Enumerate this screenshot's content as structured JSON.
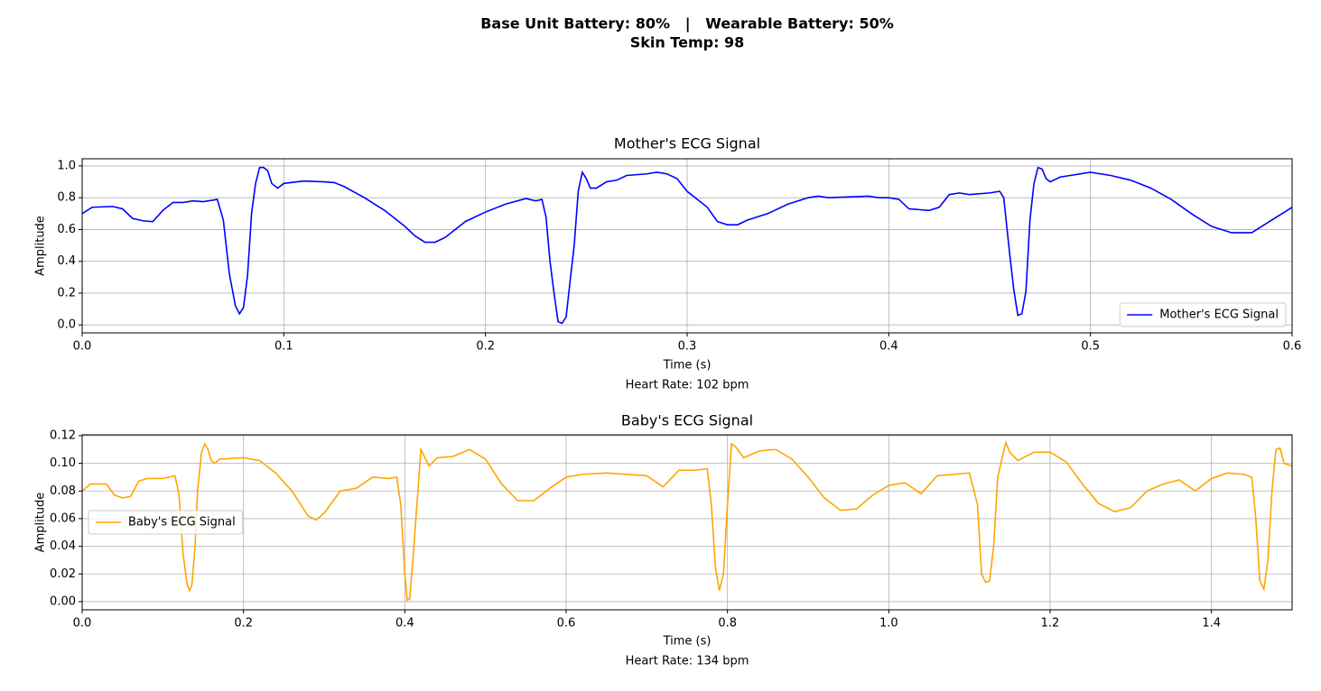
{
  "header": {
    "battery": "Base Unit Battery: 80%   |   Wearable Battery: 50%",
    "skin_temp": "Skin Temp: 98"
  },
  "chart_data": [
    {
      "type": "line",
      "title": "Mother's ECG Signal",
      "xlabel": "Time (s)",
      "ylabel": "Amplitude",
      "annotation": "Heart Rate: 102 bpm",
      "x": [
        0,
        0.005,
        0.015,
        0.02,
        0.025,
        0.03,
        0.035,
        0.04,
        0.045,
        0.05,
        0.055,
        0.06,
        0.065,
        0.067,
        0.07,
        0.073,
        0.076,
        0.078,
        0.08,
        0.082,
        0.084,
        0.086,
        0.088,
        0.09,
        0.092,
        0.094,
        0.097,
        0.1,
        0.11,
        0.12,
        0.125,
        0.13,
        0.14,
        0.15,
        0.16,
        0.165,
        0.17,
        0.175,
        0.18,
        0.19,
        0.2,
        0.21,
        0.22,
        0.225,
        0.228,
        0.23,
        0.232,
        0.234,
        0.236,
        0.238,
        0.24,
        0.242,
        0.244,
        0.246,
        0.248,
        0.25,
        0.252,
        0.255,
        0.26,
        0.265,
        0.27,
        0.28,
        0.285,
        0.29,
        0.295,
        0.3,
        0.31,
        0.315,
        0.32,
        0.325,
        0.33,
        0.34,
        0.35,
        0.36,
        0.365,
        0.37,
        0.38,
        0.39,
        0.395,
        0.4,
        0.405,
        0.41,
        0.42,
        0.425,
        0.43,
        0.435,
        0.44,
        0.45,
        0.455,
        0.457,
        0.46,
        0.462,
        0.464,
        0.466,
        0.468,
        0.47,
        0.472,
        0.474,
        0.476,
        0.478,
        0.48,
        0.485,
        0.49,
        0.5,
        0.505,
        0.51,
        0.52,
        0.53,
        0.54,
        0.55,
        0.56,
        0.57,
        0.58,
        0.59,
        0.6
      ],
      "series": [
        {
          "name": "Mother's ECG Signal",
          "color": "#0000ff",
          "values": [
            0.7,
            0.74,
            0.745,
            0.73,
            0.67,
            0.655,
            0.65,
            0.72,
            0.77,
            0.77,
            0.78,
            0.775,
            0.785,
            0.79,
            0.66,
            0.32,
            0.12,
            0.07,
            0.11,
            0.31,
            0.7,
            0.89,
            0.99,
            0.99,
            0.97,
            0.89,
            0.86,
            0.89,
            0.905,
            0.9,
            0.895,
            0.87,
            0.8,
            0.72,
            0.62,
            0.56,
            0.52,
            0.52,
            0.55,
            0.65,
            0.71,
            0.76,
            0.795,
            0.78,
            0.79,
            0.68,
            0.4,
            0.2,
            0.02,
            0.01,
            0.05,
            0.28,
            0.5,
            0.84,
            0.96,
            0.92,
            0.86,
            0.86,
            0.9,
            0.91,
            0.94,
            0.95,
            0.96,
            0.95,
            0.92,
            0.84,
            0.74,
            0.65,
            0.63,
            0.63,
            0.66,
            0.7,
            0.76,
            0.8,
            0.81,
            0.8,
            0.805,
            0.81,
            0.8,
            0.8,
            0.79,
            0.73,
            0.72,
            0.74,
            0.82,
            0.83,
            0.82,
            0.83,
            0.84,
            0.8,
            0.44,
            0.22,
            0.06,
            0.07,
            0.21,
            0.66,
            0.89,
            0.99,
            0.98,
            0.92,
            0.9,
            0.93,
            0.94,
            0.96,
            0.95,
            0.94,
            0.91,
            0.86,
            0.79,
            0.7,
            0.62,
            0.58,
            0.58,
            0.66,
            0.74
          ]
        }
      ],
      "xlim": [
        0,
        0.6
      ],
      "ylim": [
        -0.05,
        1.045
      ],
      "xticks": [
        {
          "value": 0,
          "label": "0.0"
        },
        0.1,
        0.2,
        0.3,
        0.4,
        0.5,
        0.6
      ],
      "yticks": [
        {
          "value": 0,
          "label": "0.0"
        },
        0.2,
        0.4,
        0.6,
        0.8,
        {
          "value": 1,
          "label": "1.0"
        }
      ],
      "grid": true,
      "legend": "lower right"
    },
    {
      "type": "line",
      "title": "Baby's ECG Signal",
      "xlabel": "Time (s)",
      "ylabel": "Amplitude",
      "annotation": "Heart Rate: 134 bpm",
      "x": [
        0,
        0.01,
        0.03,
        0.04,
        0.05,
        0.06,
        0.07,
        0.08,
        0.1,
        0.115,
        0.12,
        0.125,
        0.13,
        0.133,
        0.136,
        0.14,
        0.143,
        0.148,
        0.152,
        0.156,
        0.16,
        0.165,
        0.17,
        0.2,
        0.22,
        0.24,
        0.26,
        0.28,
        0.29,
        0.3,
        0.32,
        0.34,
        0.36,
        0.38,
        0.39,
        0.395,
        0.4,
        0.403,
        0.406,
        0.41,
        0.415,
        0.42,
        0.43,
        0.44,
        0.46,
        0.48,
        0.5,
        0.52,
        0.54,
        0.56,
        0.58,
        0.6,
        0.62,
        0.65,
        0.7,
        0.72,
        0.74,
        0.76,
        0.775,
        0.78,
        0.785,
        0.79,
        0.795,
        0.8,
        0.805,
        0.81,
        0.82,
        0.84,
        0.86,
        0.88,
        0.9,
        0.92,
        0.94,
        0.96,
        0.98,
        1.0,
        1.02,
        1.04,
        1.06,
        1.08,
        1.1,
        1.11,
        1.115,
        1.12,
        1.125,
        1.13,
        1.135,
        1.145,
        1.15,
        1.16,
        1.18,
        1.2,
        1.22,
        1.24,
        1.26,
        1.28,
        1.3,
        1.32,
        1.34,
        1.36,
        1.38,
        1.4,
        1.42,
        1.44,
        1.45,
        1.455,
        1.46,
        1.465,
        1.47,
        1.475,
        1.48,
        1.485,
        1.49,
        1.5
      ],
      "series": [
        {
          "name": "Baby's ECG Signal",
          "color": "#ffa500",
          "values": [
            0.08,
            0.085,
            0.085,
            0.077,
            0.075,
            0.076,
            0.087,
            0.089,
            0.089,
            0.091,
            0.078,
            0.035,
            0.013,
            0.008,
            0.012,
            0.04,
            0.08,
            0.108,
            0.114,
            0.11,
            0.102,
            0.1,
            0.103,
            0.104,
            0.102,
            0.093,
            0.08,
            0.062,
            0.059,
            0.064,
            0.08,
            0.082,
            0.09,
            0.089,
            0.09,
            0.07,
            0.02,
            0.001,
            0.002,
            0.03,
            0.07,
            0.11,
            0.098,
            0.104,
            0.105,
            0.11,
            0.103,
            0.085,
            0.073,
            0.073,
            0.082,
            0.09,
            0.092,
            0.093,
            0.091,
            0.083,
            0.095,
            0.095,
            0.096,
            0.07,
            0.025,
            0.008,
            0.02,
            0.07,
            0.114,
            0.112,
            0.104,
            0.109,
            0.11,
            0.103,
            0.09,
            0.075,
            0.066,
            0.067,
            0.077,
            0.084,
            0.086,
            0.078,
            0.091,
            0.092,
            0.093,
            0.07,
            0.02,
            0.014,
            0.015,
            0.04,
            0.09,
            0.115,
            0.108,
            0.102,
            0.108,
            0.108,
            0.101,
            0.085,
            0.071,
            0.065,
            0.068,
            0.08,
            0.085,
            0.088,
            0.08,
            0.089,
            0.093,
            0.092,
            0.09,
            0.06,
            0.015,
            0.009,
            0.03,
            0.08,
            0.11,
            0.111,
            0.1,
            0.098
          ]
        }
      ],
      "xlim": [
        0,
        1.5
      ],
      "ylim": [
        -0.0059,
        0.1206
      ],
      "xticks": [
        {
          "value": 0,
          "label": "0.0"
        },
        0.2,
        0.4,
        0.6,
        0.8,
        {
          "value": 1,
          "label": "1.0"
        },
        1.2,
        1.4
      ],
      "yticks": [
        {
          "value": 0,
          "label": "0.00"
        },
        0.02,
        0.04,
        0.06,
        0.08,
        {
          "value": 0.1,
          "label": "0.10"
        },
        0.12
      ],
      "grid": true,
      "legend": "center left"
    }
  ]
}
